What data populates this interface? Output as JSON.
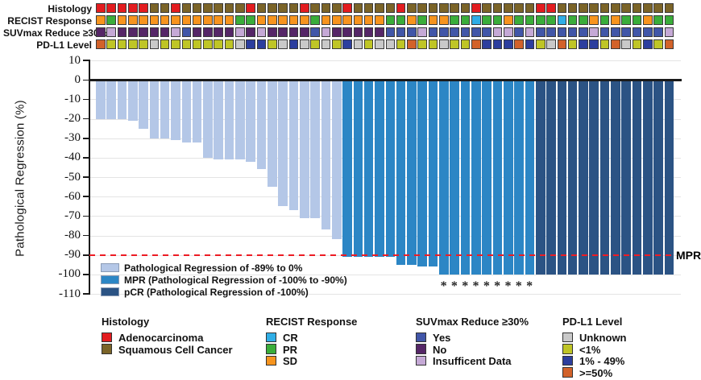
{
  "tracks": {
    "labels": [
      "Histology",
      "RECIST Response",
      "SUVmax Reduce ≥30%",
      "PD-L1 Level"
    ],
    "n_patients": 54,
    "histology": "RRRRRBBRBBBBBBRBBBBRBBBRBBBBRBBBBBBRBBBBBRRBBBBBBBBBBB",
    "recist": "OGOOOOOOOOOOOGGOOOOOGOOOOOOGGOGOOGGCGGOGGGGCGGOGOGGOGG",
    "suvmax": "PLPPPPPLBPPPPLPLPPPPBLPPPPPBBBLBBBBBBLLBLBBBBBLBBBBBBL",
    "pdl1": "OYYYYGYYYYYYYGBBYGBGYGYBGYGGYOYYGYYOBBBOBYGOYBBYOGYBYO",
    "code_meanings": {
      "histology": {
        "R": "Adenocarcinoma",
        "B": "Squamous Cell Cancer"
      },
      "recist": {
        "C": "CR",
        "G": "PR",
        "O": "SD"
      },
      "suvmax": {
        "B": "Yes",
        "P": "No",
        "L": "Insufficent Data"
      },
      "pdl1": {
        "G": "Unknown",
        "Y": "<1%",
        "B": "1% - 49%",
        "O": ">=50%"
      }
    },
    "palette": {
      "histology": {
        "R": "#e31c1f",
        "B": "#7b6428"
      },
      "recist": {
        "C": "#30aee6",
        "G": "#3aad3a",
        "O": "#f7941e"
      },
      "suvmax": {
        "B": "#4156a8",
        "P": "#552667",
        "L": "#c5a9d6"
      },
      "pdl1": {
        "G": "#c9c9c9",
        "Y": "#bfc526",
        "B": "#2c3e9e",
        "O": "#d2622a"
      }
    }
  },
  "chart_data": {
    "type": "bar",
    "title": "",
    "xlabel": "",
    "ylabel": "Pathological Regression (%)",
    "ylim": [
      -110,
      10
    ],
    "yticks": [
      10,
      0,
      -10,
      -20,
      -30,
      -40,
      -50,
      -60,
      -70,
      -80,
      -90,
      -100,
      -110
    ],
    "grid": true,
    "values": [
      -20,
      -20,
      -20,
      -21,
      -25,
      -30,
      -30,
      -31,
      -32,
      -32,
      -40,
      -41,
      -41,
      -41,
      -42,
      -46,
      -55,
      -65,
      -67,
      -71,
      -71,
      -77,
      -82,
      -91,
      -91,
      -91,
      -91,
      -91,
      -95,
      -95,
      -96,
      -96,
      -100,
      -100,
      -100,
      -100,
      -100,
      -100,
      -100,
      -100,
      -100,
      -100,
      -100,
      -100,
      -100,
      -100,
      -100,
      -100,
      -100,
      -100,
      -100,
      -100,
      -100,
      -100
    ],
    "segment_counts": {
      "light": 23,
      "mpr": 18,
      "pcr": 13
    },
    "segment_colors": {
      "light": "#b4c7e7",
      "mpr": "#2c86c5",
      "pcr": "#2b5384"
    },
    "mpr_reference_line": -90,
    "mpr_line_color": "#ed1c24",
    "mpr_label": "MPR",
    "asterisk_columns": [
      33,
      34,
      35,
      36,
      37,
      38,
      39,
      40,
      41
    ],
    "asterisk_symbol": "*",
    "legend_position": "inside bottom-left",
    "legend": [
      {
        "label": "Pathological Regression of -89% to 0%",
        "color": "#b4c7e7"
      },
      {
        "label": "MPR (Pathological Regression of -100% to -90%)",
        "color": "#2c86c5"
      },
      {
        "label": "pCR (Pathological Regression of -100%)",
        "color": "#2b5384"
      }
    ]
  },
  "bottom_legend": [
    {
      "title": "Histology",
      "items": [
        {
          "label": "Adenocarcinoma",
          "color": "#e31c1f"
        },
        {
          "label": "Squamous Cell Cancer",
          "color": "#7b6428"
        }
      ]
    },
    {
      "title": "RECIST Response",
      "items": [
        {
          "label": "CR",
          "color": "#30aee6"
        },
        {
          "label": "PR",
          "color": "#3aad3a"
        },
        {
          "label": "SD",
          "color": "#f7941e"
        }
      ]
    },
    {
      "title": "SUVmax Reduce ≥30%",
      "items": [
        {
          "label": "Yes",
          "color": "#4156a8"
        },
        {
          "label": "No",
          "color": "#552667"
        },
        {
          "label": "Insufficent Data",
          "color": "#c5a9d6"
        }
      ]
    },
    {
      "title": "PD-L1 Level",
      "items": [
        {
          "label": "Unknown",
          "color": "#c9c9c9"
        },
        {
          "label": "<1%",
          "color": "#bfc526"
        },
        {
          "label": "1% - 49%",
          "color": "#2c3e9e"
        },
        {
          "label": ">=50%",
          "color": "#d2622a"
        }
      ]
    }
  ]
}
